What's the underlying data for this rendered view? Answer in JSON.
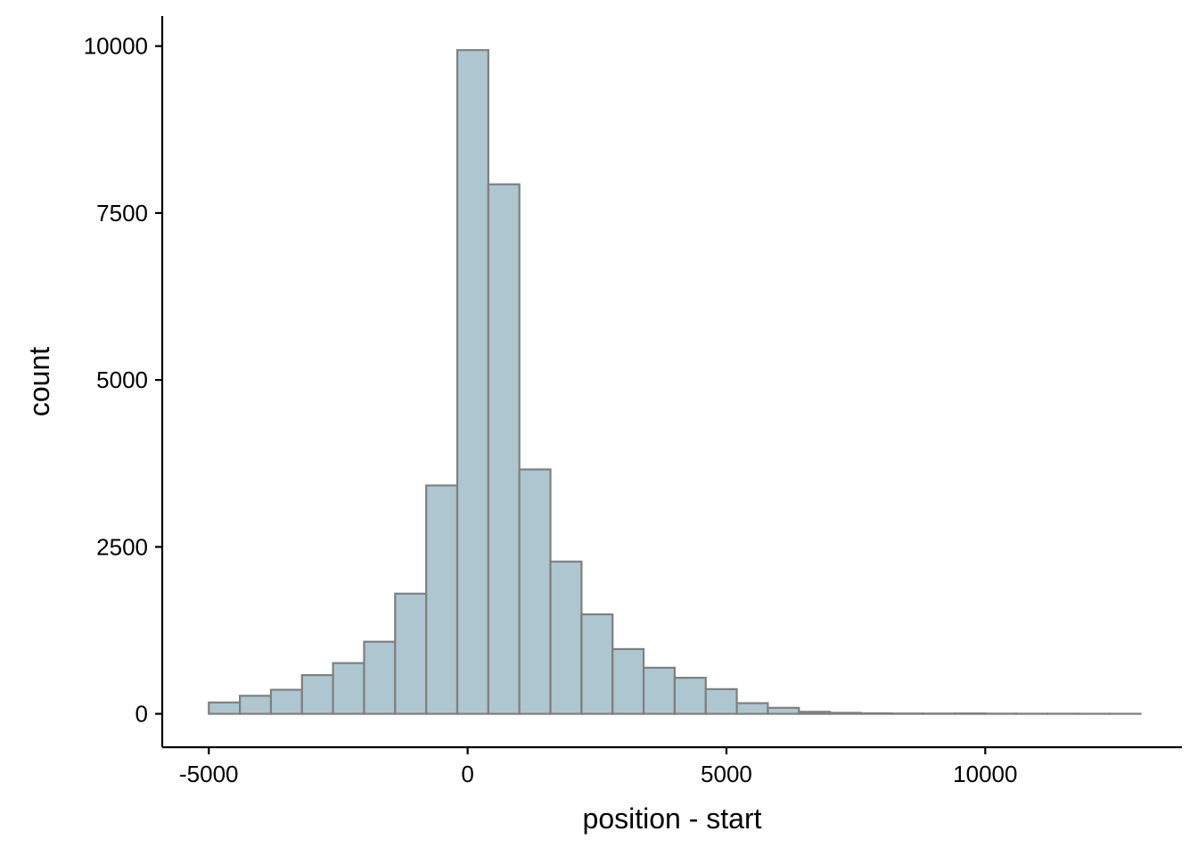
{
  "chart_data": {
    "type": "bar",
    "title": "",
    "xlabel": "position - start",
    "ylabel": "count",
    "x_ticks": [
      -5000,
      0,
      5000,
      10000
    ],
    "y_ticks": [
      0,
      2500,
      5000,
      7500,
      10000
    ],
    "xlim": [
      -5900,
      13800
    ],
    "ylim": [
      -500,
      10450
    ],
    "grid": false,
    "legend": "none",
    "bar_fill": "#aec6cf",
    "bar_stroke": "#7f7f7f",
    "bins": [
      {
        "x0": -5000,
        "x1": -4400,
        "count": 170
      },
      {
        "x0": -4400,
        "x1": -3800,
        "count": 270
      },
      {
        "x0": -3800,
        "x1": -3200,
        "count": 360
      },
      {
        "x0": -3200,
        "x1": -2600,
        "count": 580
      },
      {
        "x0": -2600,
        "x1": -2000,
        "count": 760
      },
      {
        "x0": -2000,
        "x1": -1400,
        "count": 1080
      },
      {
        "x0": -1400,
        "x1": -800,
        "count": 1800
      },
      {
        "x0": -800,
        "x1": -200,
        "count": 3420
      },
      {
        "x0": -200,
        "x1": 400,
        "count": 9940
      },
      {
        "x0": 400,
        "x1": 1000,
        "count": 7930
      },
      {
        "x0": 1000,
        "x1": 1600,
        "count": 3660
      },
      {
        "x0": 1600,
        "x1": 2200,
        "count": 2280
      },
      {
        "x0": 2200,
        "x1": 2800,
        "count": 1490
      },
      {
        "x0": 2800,
        "x1": 3400,
        "count": 970
      },
      {
        "x0": 3400,
        "x1": 4000,
        "count": 690
      },
      {
        "x0": 4000,
        "x1": 4600,
        "count": 540
      },
      {
        "x0": 4600,
        "x1": 5200,
        "count": 370
      },
      {
        "x0": 5200,
        "x1": 5800,
        "count": 160
      },
      {
        "x0": 5800,
        "x1": 6400,
        "count": 90
      },
      {
        "x0": 6400,
        "x1": 7000,
        "count": 30
      },
      {
        "x0": 7000,
        "x1": 7600,
        "count": 15
      },
      {
        "x0": 7600,
        "x1": 8200,
        "count": 8
      },
      {
        "x0": 8200,
        "x1": 8800,
        "count": 5
      },
      {
        "x0": 8800,
        "x1": 9400,
        "count": 4
      },
      {
        "x0": 9400,
        "x1": 10000,
        "count": 6
      },
      {
        "x0": 10000,
        "x1": 10600,
        "count": 3
      },
      {
        "x0": 10600,
        "x1": 11200,
        "count": 2
      },
      {
        "x0": 11200,
        "x1": 11800,
        "count": 2
      },
      {
        "x0": 11800,
        "x1": 12400,
        "count": 1
      },
      {
        "x0": 12400,
        "x1": 13000,
        "count": 1
      }
    ]
  }
}
